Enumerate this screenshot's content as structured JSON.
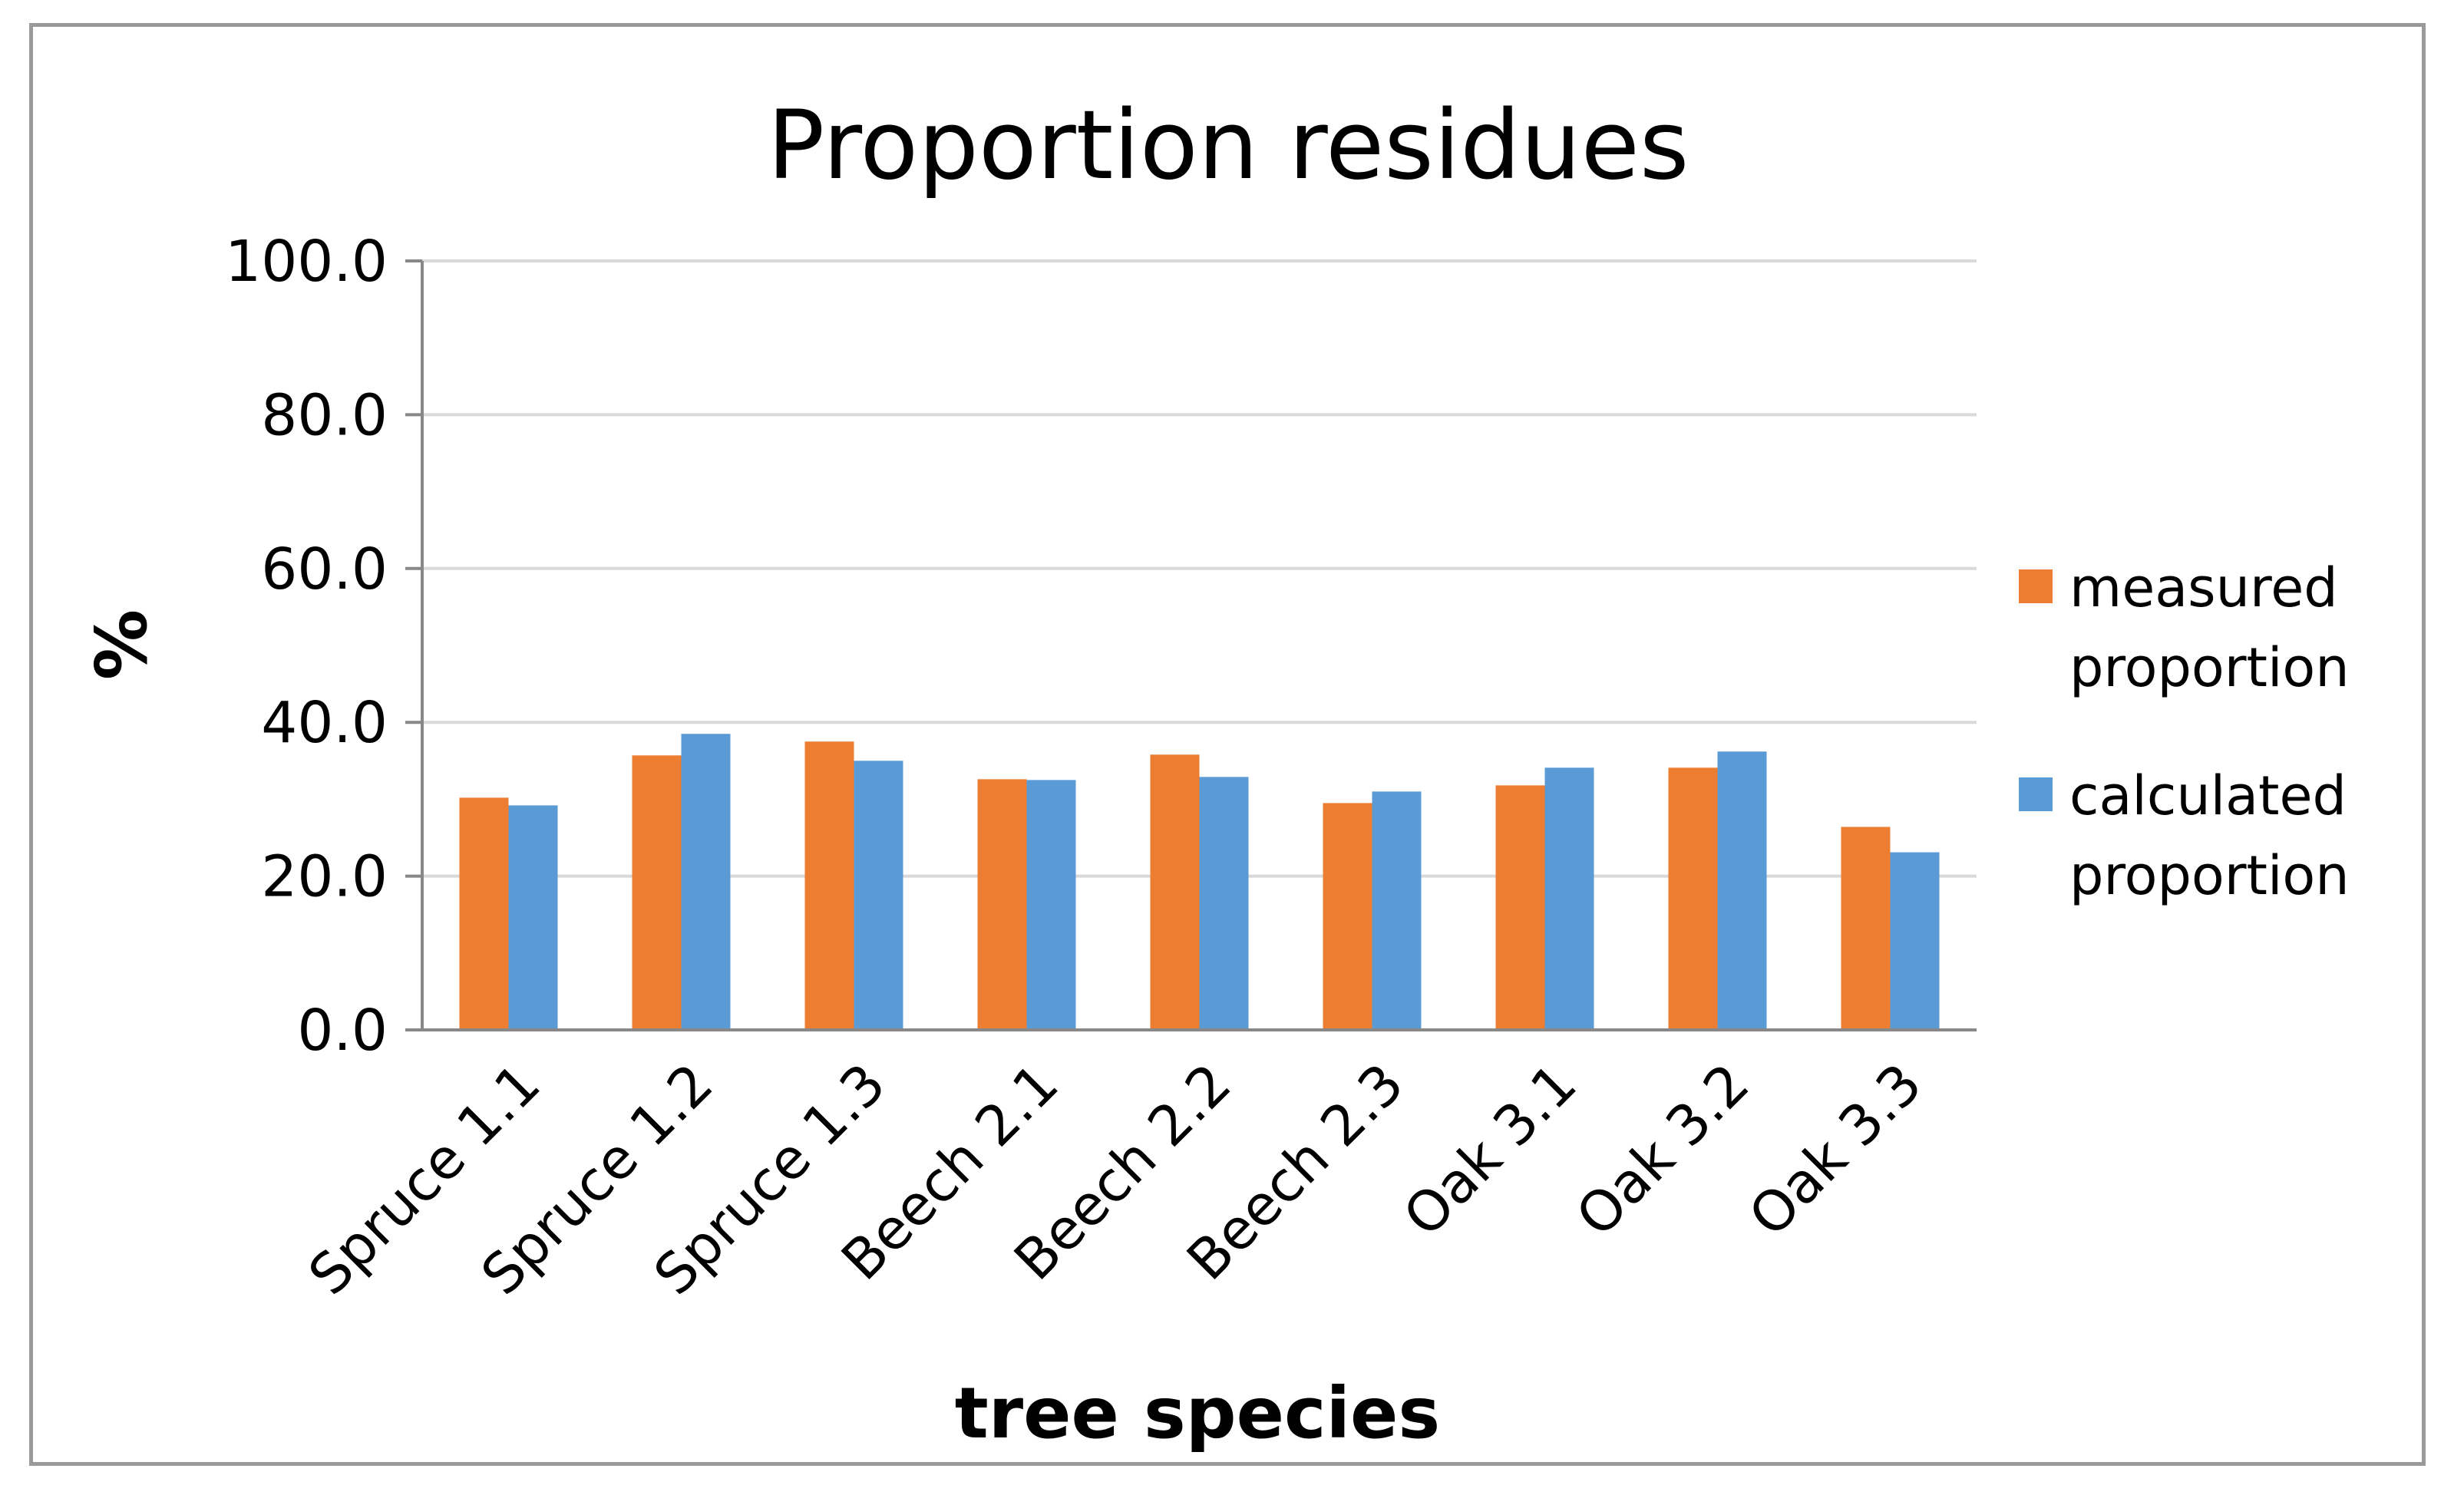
{
  "chart_data": {
    "type": "bar",
    "title": "Proportion residues",
    "xlabel": "tree species",
    "ylabel": "%",
    "ylim": [
      0,
      100
    ],
    "yticks": [
      "0.0",
      "20.0",
      "40.0",
      "60.0",
      "80.0",
      "100.0"
    ],
    "grid": true,
    "legend_position": "right",
    "categories": [
      "Spruce 1.1",
      "Spruce 1.2",
      "Spruce 1.3",
      "Beech 2.1",
      "Beech 2.2",
      "Beech 2.3",
      "Oak 3.1",
      "Oak 3.2",
      "Oak 3.3"
    ],
    "series": [
      {
        "name": "measured proportion",
        "legend_lines": [
          "measured",
          "proportion"
        ],
        "color": "#ED7D31",
        "values": [
          30.2,
          35.7,
          37.5,
          32.6,
          35.8,
          29.5,
          31.8,
          34.1,
          26.4
        ]
      },
      {
        "name": "calculated proportion",
        "legend_lines": [
          "calculated",
          "proportion"
        ],
        "color": "#5B9BD5",
        "values": [
          29.2,
          38.5,
          35.0,
          32.5,
          32.9,
          31.0,
          34.1,
          36.2,
          23.1
        ]
      }
    ]
  }
}
